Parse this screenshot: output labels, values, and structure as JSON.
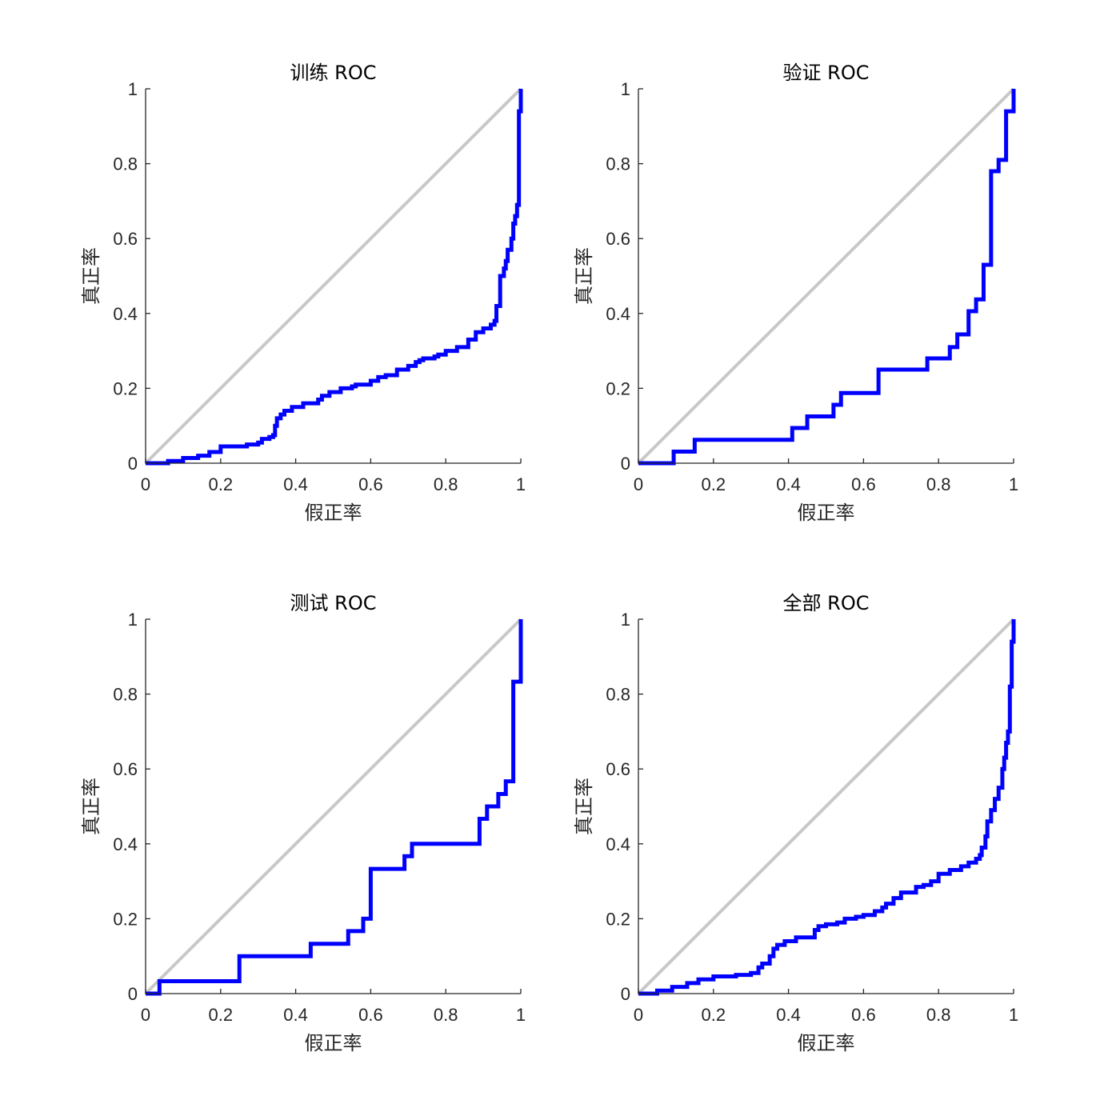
{
  "chart_data": [
    {
      "type": "line",
      "title": "训练 ROC",
      "xlabel": "假正率",
      "ylabel": "真正率",
      "xlim": [
        0,
        1
      ],
      "ylim": [
        0,
        1
      ],
      "xticks": [
        "0",
        "0.2",
        "0.4",
        "0.6",
        "0.8",
        "1"
      ],
      "yticks": [
        "0",
        "0.2",
        "0.4",
        "0.6",
        "0.8",
        "1"
      ],
      "grid": false,
      "series": [
        {
          "kind": "diagonal",
          "color": "#c8c8c8",
          "x": [
            0,
            1
          ],
          "y": [
            0,
            1
          ]
        },
        {
          "kind": "roc",
          "color": "#0000ff",
          "x": [
            0,
            0.05,
            0.06,
            0.1,
            0.14,
            0.17,
            0.2,
            0.27,
            0.3,
            0.31,
            0.33,
            0.34,
            0.345,
            0.35,
            0.36,
            0.37,
            0.39,
            0.42,
            0.46,
            0.47,
            0.49,
            0.52,
            0.55,
            0.56,
            0.6,
            0.62,
            0.64,
            0.67,
            0.7,
            0.72,
            0.73,
            0.74,
            0.77,
            0.78,
            0.8,
            0.83,
            0.86,
            0.88,
            0.9,
            0.92,
            0.93,
            0.935,
            0.945,
            0.955,
            0.96,
            0.965,
            0.975,
            0.98,
            0.985,
            0.99,
            0.995,
            1.0
          ],
          "y": [
            0,
            0,
            0.006,
            0.014,
            0.02,
            0.03,
            0.045,
            0.05,
            0.055,
            0.065,
            0.07,
            0.075,
            0.1,
            0.12,
            0.13,
            0.14,
            0.15,
            0.16,
            0.17,
            0.18,
            0.19,
            0.2,
            0.205,
            0.21,
            0.22,
            0.23,
            0.235,
            0.25,
            0.26,
            0.27,
            0.275,
            0.28,
            0.285,
            0.29,
            0.3,
            0.31,
            0.33,
            0.35,
            0.36,
            0.37,
            0.38,
            0.42,
            0.5,
            0.52,
            0.54,
            0.57,
            0.6,
            0.64,
            0.66,
            0.69,
            0.94,
            1.0
          ]
        }
      ]
    },
    {
      "type": "line",
      "title": "验证 ROC",
      "xlabel": "假正率",
      "ylabel": "真正率",
      "xlim": [
        0,
        1
      ],
      "ylim": [
        0,
        1
      ],
      "xticks": [
        "0",
        "0.2",
        "0.4",
        "0.6",
        "0.8",
        "1"
      ],
      "yticks": [
        "0",
        "0.2",
        "0.4",
        "0.6",
        "0.8",
        "1"
      ],
      "grid": false,
      "series": [
        {
          "kind": "diagonal",
          "color": "#c8c8c8",
          "x": [
            0,
            1
          ],
          "y": [
            0,
            1
          ]
        },
        {
          "kind": "roc",
          "color": "#0000ff",
          "x": [
            0,
            0.094,
            0.15,
            0.41,
            0.45,
            0.52,
            0.54,
            0.64,
            0.77,
            0.83,
            0.85,
            0.88,
            0.9,
            0.92,
            0.94,
            0.94,
            0.96,
            0.98,
            1.0
          ],
          "y": [
            0,
            0.031,
            0.0625,
            0.094,
            0.125,
            0.156,
            0.1875,
            0.25,
            0.28,
            0.31,
            0.344,
            0.406,
            0.4375,
            0.53,
            0.78,
            0.78,
            0.81,
            0.94,
            1.0
          ]
        }
      ]
    },
    {
      "type": "line",
      "title": "测试 ROC",
      "xlabel": "假正率",
      "ylabel": "真正率",
      "xlim": [
        0,
        1
      ],
      "ylim": [
        0,
        1
      ],
      "xticks": [
        "0",
        "0.2",
        "0.4",
        "0.6",
        "0.8",
        "1"
      ],
      "yticks": [
        "0",
        "0.2",
        "0.4",
        "0.6",
        "0.8",
        "1"
      ],
      "grid": false,
      "series": [
        {
          "kind": "diagonal",
          "color": "#c8c8c8",
          "x": [
            0,
            1
          ],
          "y": [
            0,
            1
          ]
        },
        {
          "kind": "roc",
          "color": "#0000ff",
          "x": [
            0,
            0.037,
            0.25,
            0.44,
            0.54,
            0.58,
            0.6,
            0.69,
            0.71,
            0.89,
            0.91,
            0.94,
            0.96,
            0.98,
            1.0
          ],
          "y": [
            0,
            0.033,
            0.1,
            0.133,
            0.167,
            0.2,
            0.333,
            0.367,
            0.4,
            0.467,
            0.5,
            0.533,
            0.567,
            0.833,
            1.0
          ]
        }
      ]
    },
    {
      "type": "line",
      "title": "全部 ROC",
      "xlabel": "假正率",
      "ylabel": "真正率",
      "xlim": [
        0,
        1
      ],
      "ylim": [
        0,
        1
      ],
      "xticks": [
        "0",
        "0.2",
        "0.4",
        "0.6",
        "0.8",
        "1"
      ],
      "yticks": [
        "0",
        "0.2",
        "0.4",
        "0.6",
        "0.8",
        "1"
      ],
      "grid": false,
      "series": [
        {
          "kind": "diagonal",
          "color": "#c8c8c8",
          "x": [
            0,
            1
          ],
          "y": [
            0,
            1
          ]
        },
        {
          "kind": "roc",
          "color": "#0000ff",
          "x": [
            0,
            0.05,
            0.09,
            0.13,
            0.16,
            0.2,
            0.26,
            0.3,
            0.32,
            0.33,
            0.35,
            0.36,
            0.37,
            0.39,
            0.42,
            0.47,
            0.48,
            0.5,
            0.53,
            0.55,
            0.58,
            0.6,
            0.63,
            0.65,
            0.66,
            0.68,
            0.7,
            0.74,
            0.76,
            0.78,
            0.8,
            0.83,
            0.86,
            0.88,
            0.9,
            0.91,
            0.915,
            0.925,
            0.93,
            0.94,
            0.95,
            0.96,
            0.97,
            0.975,
            0.98,
            0.985,
            0.99,
            0.995,
            1.0
          ],
          "y": [
            0,
            0.008,
            0.018,
            0.028,
            0.038,
            0.046,
            0.05,
            0.055,
            0.07,
            0.08,
            0.1,
            0.12,
            0.13,
            0.14,
            0.15,
            0.17,
            0.18,
            0.185,
            0.19,
            0.2,
            0.205,
            0.21,
            0.22,
            0.23,
            0.24,
            0.255,
            0.27,
            0.285,
            0.29,
            0.3,
            0.32,
            0.33,
            0.34,
            0.35,
            0.36,
            0.37,
            0.39,
            0.42,
            0.46,
            0.49,
            0.52,
            0.55,
            0.6,
            0.63,
            0.67,
            0.7,
            0.82,
            0.94,
            1.0
          ]
        }
      ]
    }
  ]
}
